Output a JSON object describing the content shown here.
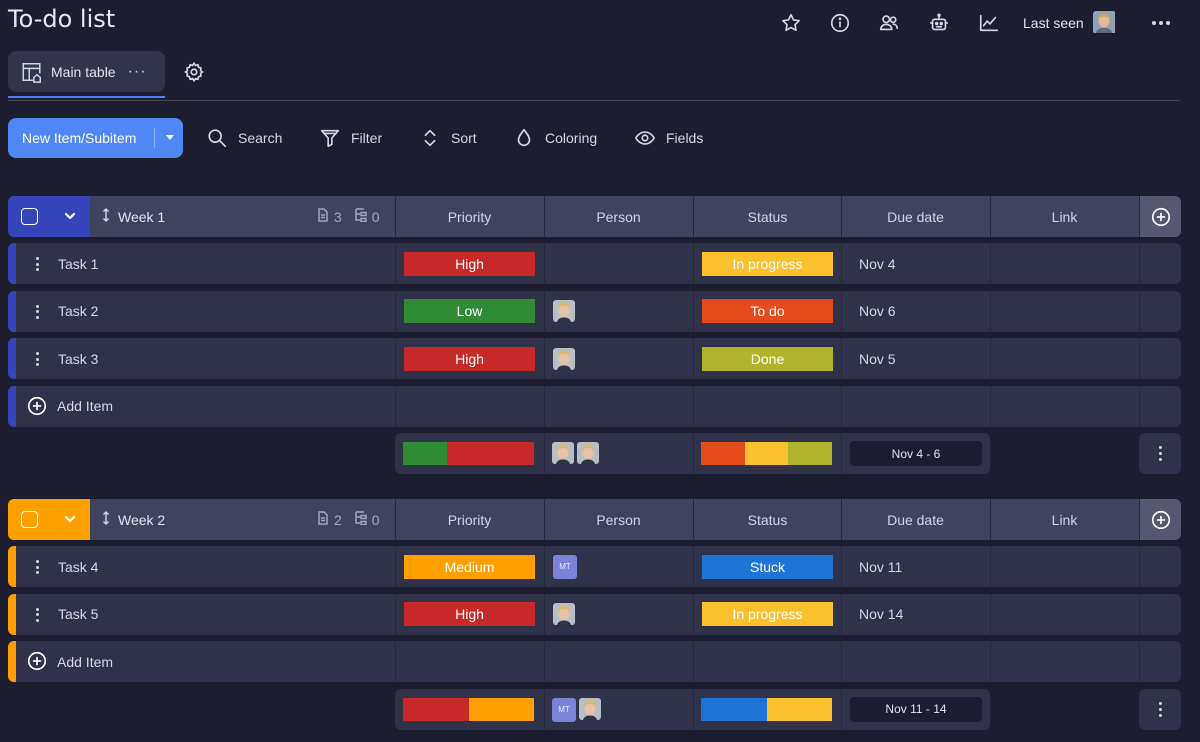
{
  "app": {
    "title": "To-do list"
  },
  "header": {
    "last_seen_label": "Last seen"
  },
  "view": {
    "main_tab_label": "Main table"
  },
  "toolbar": {
    "new_item_label": "New Item/Subitem",
    "search_label": "Search",
    "filter_label": "Filter",
    "sort_label": "Sort",
    "coloring_label": "Coloring",
    "fields_label": "Fields"
  },
  "columns": [
    "Priority",
    "Person",
    "Status",
    "Due date",
    "Link"
  ],
  "colors": {
    "accent": "#4f88f5",
    "week1": "#3345b8",
    "week2": "#ffa000",
    "High": "#c72828",
    "Low": "#2f8c35",
    "Medium": "#ffa000",
    "In progress": "#fbc02d",
    "To do": "#e54b1c",
    "Done": "#afb42b",
    "Stuck": "#1f73d6"
  },
  "groups": [
    {
      "title": "Week 1",
      "item_count": "3",
      "subitem_count": "0",
      "add_item_label": "Add Item",
      "tasks": [
        {
          "name": "Task 1",
          "priority": "High",
          "person": "",
          "status": "In progress",
          "due": "Nov 4"
        },
        {
          "name": "Task 2",
          "priority": "Low",
          "person": "photo",
          "status": "To do",
          "due": "Nov 6"
        },
        {
          "name": "Task 3",
          "priority": "High",
          "person": "photo",
          "status": "Done",
          "due": "Nov 5"
        }
      ],
      "summary": {
        "priority_distribution": [
          {
            "label": "Low",
            "share": 0.333
          },
          {
            "label": "High",
            "share": 0.667
          }
        ],
        "persons": [
          "photo",
          "photo"
        ],
        "status_distribution": [
          {
            "label": "To do",
            "share": 0.333
          },
          {
            "label": "In progress",
            "share": 0.333
          },
          {
            "label": "Done",
            "share": 0.334
          }
        ],
        "date_range": "Nov 4 - 6"
      }
    },
    {
      "title": "Week 2",
      "item_count": "2",
      "subitem_count": "0",
      "add_item_label": "Add Item",
      "tasks": [
        {
          "name": "Task 4",
          "priority": "Medium",
          "person": "MT",
          "status": "Stuck",
          "due": "Nov 11"
        },
        {
          "name": "Task 5",
          "priority": "High",
          "person": "photo",
          "status": "In progress",
          "due": "Nov 14"
        }
      ],
      "summary": {
        "priority_distribution": [
          {
            "label": "High",
            "share": 0.5
          },
          {
            "label": "Medium",
            "share": 0.5
          }
        ],
        "persons": [
          "MT",
          "photo"
        ],
        "status_distribution": [
          {
            "label": "Stuck",
            "share": 0.5
          },
          {
            "label": "In progress",
            "share": 0.5
          }
        ],
        "date_range": "Nov 11 - 14"
      }
    }
  ]
}
